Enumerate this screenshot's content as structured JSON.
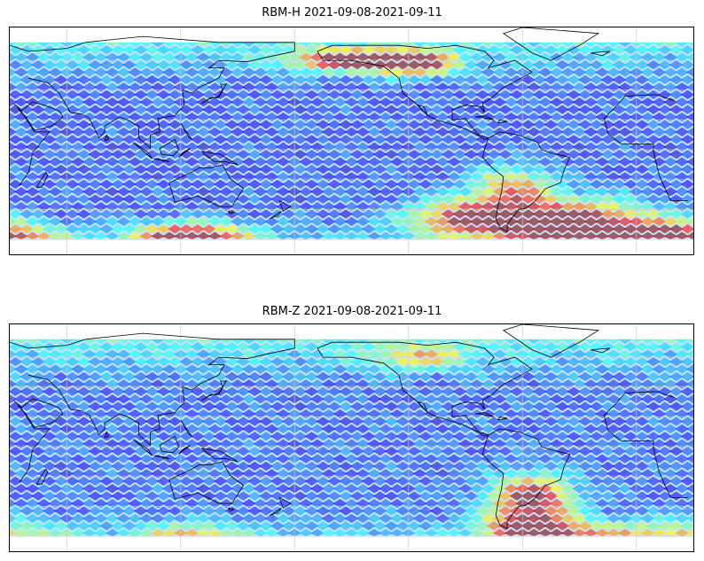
{
  "panels": [
    {
      "id": "rbm-h",
      "title": "RBM-H 2021-09-08-2021-09-11",
      "hotspots": [
        {
          "lon": 125,
          "lat": -60,
          "amp": 1.0,
          "rx": 28,
          "ry": 10
        },
        {
          "lon": 20,
          "lat": -60,
          "amp": 0.95,
          "rx": 30,
          "ry": 10
        },
        {
          "lon": -90,
          "lat": -45,
          "amp": 0.7,
          "rx": 30,
          "ry": 12
        },
        {
          "lon": -35,
          "lat": -50,
          "amp": 1.0,
          "rx": 42,
          "ry": 16
        },
        {
          "lon": -150,
          "lat": 60,
          "amp": 0.85,
          "rx": 30,
          "ry": 7
        },
        {
          "lon": -115,
          "lat": 58,
          "amp": 0.7,
          "rx": 20,
          "ry": 8
        },
        {
          "lon": -65,
          "lat": -25,
          "amp": 0.55,
          "rx": 22,
          "ry": 14
        }
      ],
      "base_level": 0.16
    },
    {
      "id": "rbm-z",
      "title": "RBM-Z 2021-09-08-2021-09-11",
      "hotspots": [
        {
          "lon": -55,
          "lat": -35,
          "amp": 0.85,
          "rx": 22,
          "ry": 16
        },
        {
          "lon": -40,
          "lat": -60,
          "amp": 0.55,
          "rx": 30,
          "ry": 10
        },
        {
          "lon": 20,
          "lat": -60,
          "amp": 0.4,
          "rx": 35,
          "ry": 10
        },
        {
          "lon": 125,
          "lat": -60,
          "amp": 0.45,
          "rx": 25,
          "ry": 8
        },
        {
          "lon": -115,
          "lat": 60,
          "amp": 0.4,
          "rx": 25,
          "ry": 8
        },
        {
          "lon": -60,
          "lat": -55,
          "amp": 0.5,
          "rx": 20,
          "ry": 10
        }
      ],
      "base_level": 0.18
    }
  ],
  "map": {
    "lon_range": [
      30,
      390
    ],
    "lat_range": [
      -70,
      82
    ],
    "data_lat_range": [
      -60,
      72
    ],
    "gridlines": true,
    "colormap": "jet",
    "coastline_color": "#000000",
    "grid_color": "#cccccc"
  }
}
